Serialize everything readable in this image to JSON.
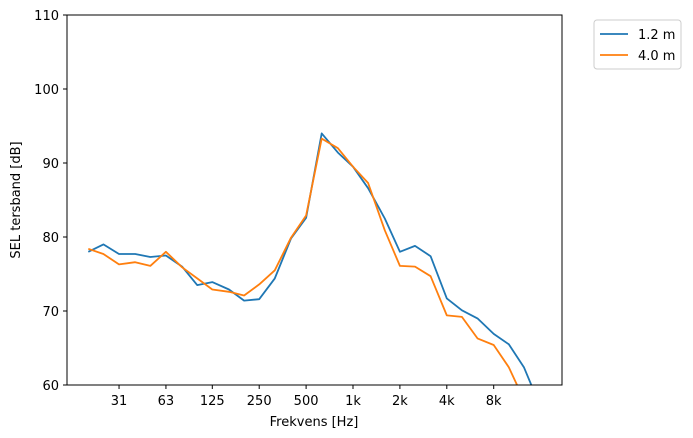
{
  "chart_data": {
    "type": "line",
    "title": "",
    "xlabel": "Frekvens [Hz]",
    "ylabel": "SEL tersband [dB]",
    "xscale": "log",
    "ylim": [
      60,
      110
    ],
    "xlim_hz": [
      16,
      20000
    ],
    "yticks": [
      60,
      70,
      80,
      90,
      100,
      110
    ],
    "xticks": [
      {
        "value": 31.5,
        "label": "31"
      },
      {
        "value": 63,
        "label": "63"
      },
      {
        "value": 125,
        "label": "125"
      },
      {
        "value": 250,
        "label": "250"
      },
      {
        "value": 500,
        "label": "500"
      },
      {
        "value": 1000,
        "label": "1k"
      },
      {
        "value": 2000,
        "label": "2k"
      },
      {
        "value": 4000,
        "label": "4k"
      },
      {
        "value": 8000,
        "label": "8k"
      }
    ],
    "grid": false,
    "legend_position": "outside-top-right",
    "x": [
      20,
      25,
      31.5,
      40,
      50,
      63,
      80,
      100,
      125,
      160,
      200,
      250,
      315,
      400,
      500,
      630,
      800,
      1000,
      1250,
      1600,
      2000,
      2500,
      3150,
      4000,
      5000,
      6300,
      8000,
      10000,
      12500,
      16000
    ],
    "series": [
      {
        "name": "1.2 m",
        "color": "#1f77b4",
        "values": [
          78.0,
          79.0,
          77.7,
          77.7,
          77.3,
          77.5,
          76.0,
          73.5,
          73.9,
          72.9,
          71.4,
          71.6,
          74.4,
          79.8,
          82.6,
          94.0,
          91.4,
          89.5,
          86.6,
          82.5,
          78.0,
          78.8,
          77.4,
          71.7,
          70.1,
          69.0,
          66.9,
          65.5,
          62.4,
          57.0
        ]
      },
      {
        "name": "4.0 m",
        "color": "#ff7f0e",
        "values": [
          78.4,
          77.7,
          76.3,
          76.6,
          76.1,
          78.0,
          75.9,
          74.4,
          72.9,
          72.6,
          72.1,
          73.6,
          75.5,
          79.9,
          82.9,
          93.3,
          92.0,
          89.5,
          87.3,
          80.9,
          76.1,
          76.0,
          74.7,
          69.4,
          69.2,
          66.3,
          65.4,
          62.4,
          58.0,
          55.0
        ]
      }
    ]
  }
}
